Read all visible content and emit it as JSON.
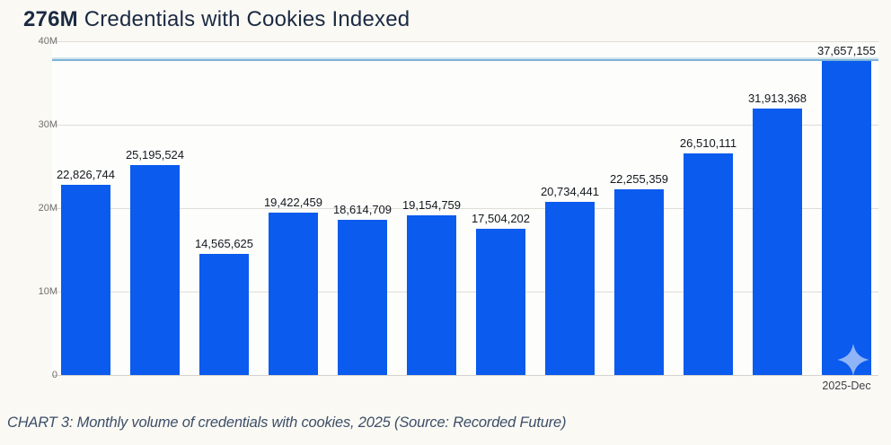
{
  "header": {
    "metric": "276M",
    "title_rest": " Credentials with Cookies Indexed"
  },
  "caption": "CHART 3: Monthly volume of credentials with cookies, 2025 (Source: Recorded Future)",
  "colors": {
    "bar": "#0a5bee",
    "reference_line": "#7db3d6",
    "gridline": "#e0ddd8",
    "title": "#1b2a42",
    "value_label": "#14181f",
    "watermark": "#a9c6ee"
  },
  "watermark": {
    "icon": "sparkle-icon"
  },
  "chart_data": {
    "type": "bar",
    "title": "276M Credentials with Cookies Indexed",
    "xlabel": "",
    "ylabel": "",
    "ylim": [
      0,
      40000000
    ],
    "grid": "horizontal",
    "legend": "none",
    "x_axis_label": "2025-Dec",
    "categories": [
      "",
      "",
      "",
      "",
      "",
      "",
      "",
      "",
      "",
      "",
      "",
      "2025-Dec"
    ],
    "values": [
      22826744,
      25195524,
      14565625,
      19422459,
      18614709,
      19154759,
      17504202,
      20734441,
      22255359,
      26510111,
      31913368,
      37657155
    ],
    "value_labels": [
      "22,826,744",
      "25,195,524",
      "14,565,625",
      "19,422,459",
      "18,614,709",
      "19,154,759",
      "17,504,202",
      "20,734,441",
      "22,255,359",
      "26,510,111",
      "31,913,368",
      "37,657,155"
    ],
    "yticks": [
      {
        "label": "0",
        "value": 0
      },
      {
        "label": "10M",
        "value": 10000000
      },
      {
        "label": "20M",
        "value": 20000000
      },
      {
        "label": "30M",
        "value": 30000000
      },
      {
        "label": "40M",
        "value": 40000000
      }
    ],
    "reference_line": {
      "value": 37657155
    }
  }
}
